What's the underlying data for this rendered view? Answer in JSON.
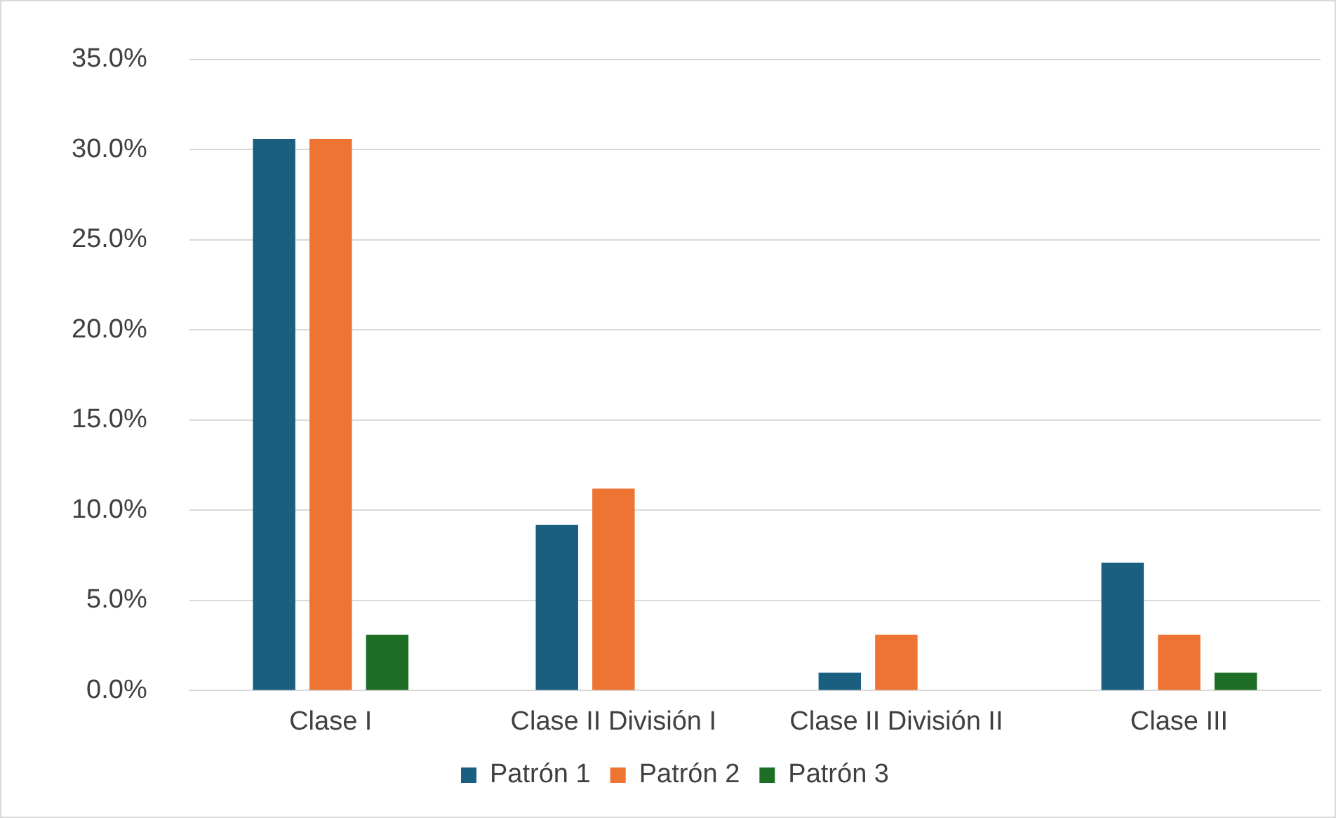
{
  "chart_data": {
    "type": "bar",
    "categories": [
      "Clase I",
      "Clase II División I",
      "Clase II División II",
      "Clase III"
    ],
    "series": [
      {
        "name": "Patrón 1",
        "color": "#1a5f80",
        "values": [
          30.6,
          9.2,
          1.0,
          7.1
        ]
      },
      {
        "name": "Patrón 2",
        "color": "#ed7432",
        "values": [
          30.6,
          11.2,
          3.1,
          3.1
        ]
      },
      {
        "name": "Patrón 3",
        "color": "#1e6e25",
        "values": [
          3.1,
          0,
          0,
          1.0
        ]
      }
    ],
    "ylim": [
      0,
      35
    ],
    "yticks": [
      {
        "value": 0,
        "label": "0.0%"
      },
      {
        "value": 5,
        "label": "5.0%"
      },
      {
        "value": 10,
        "label": "10.0%"
      },
      {
        "value": 15,
        "label": "15.0%"
      },
      {
        "value": 20,
        "label": "20.0%"
      },
      {
        "value": 25,
        "label": "25.0%"
      },
      {
        "value": 30,
        "label": "30.0%"
      },
      {
        "value": 35,
        "label": "35.0%"
      }
    ],
    "grid": "y",
    "legend": "bottom"
  }
}
